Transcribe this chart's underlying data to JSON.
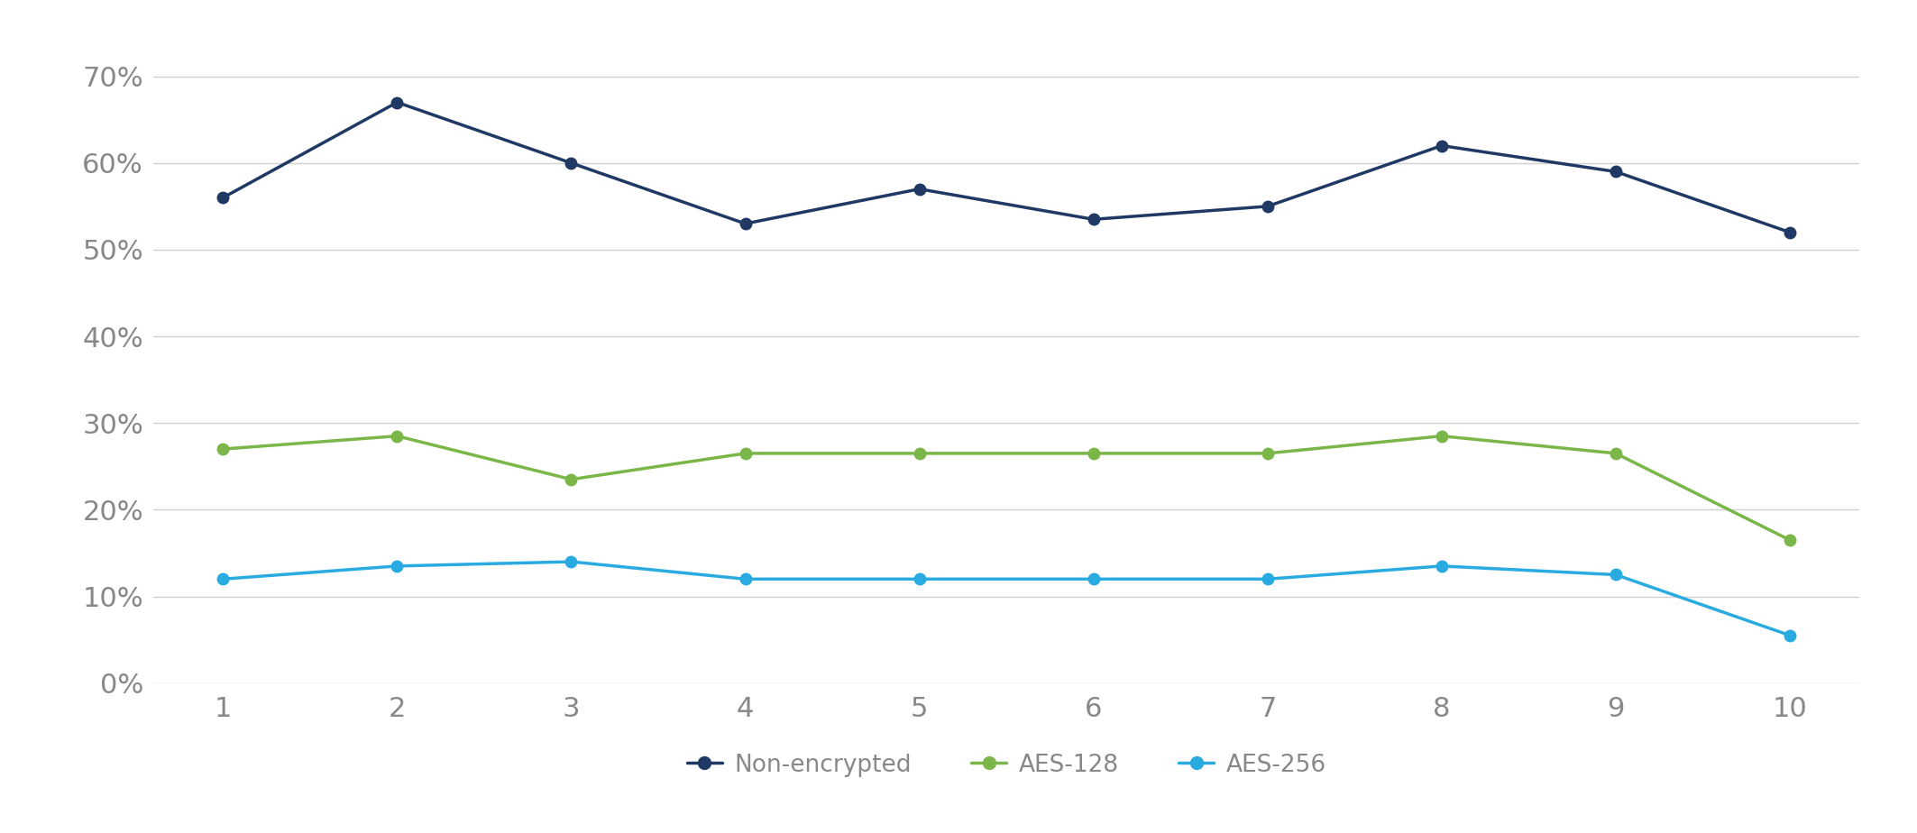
{
  "x": [
    1,
    2,
    3,
    4,
    5,
    6,
    7,
    8,
    9,
    10
  ],
  "non_encrypted": [
    0.56,
    0.67,
    0.6,
    0.53,
    0.57,
    0.535,
    0.55,
    0.62,
    0.59,
    0.52
  ],
  "aes128": [
    0.27,
    0.285,
    0.235,
    0.265,
    0.265,
    0.265,
    0.265,
    0.285,
    0.265,
    0.165
  ],
  "aes256": [
    0.12,
    0.135,
    0.14,
    0.12,
    0.12,
    0.12,
    0.12,
    0.135,
    0.125,
    0.055
  ],
  "non_encrypted_color": "#1f3864",
  "aes128_color": "#7ab648",
  "aes256_color": "#29abe2",
  "background_color": "#ffffff",
  "grid_color": "#d0d0d0",
  "ylim": [
    0,
    0.74
  ],
  "yticks": [
    0.0,
    0.1,
    0.2,
    0.3,
    0.4,
    0.5,
    0.6,
    0.7
  ],
  "xticks": [
    1,
    2,
    3,
    4,
    5,
    6,
    7,
    8,
    9,
    10
  ],
  "legend_labels": [
    "Non-encrypted",
    "AES-128",
    "AES-256"
  ],
  "marker": "o",
  "marker_size": 9,
  "linewidth": 2.5,
  "tick_labelsize": 22,
  "legend_fontsize": 19
}
